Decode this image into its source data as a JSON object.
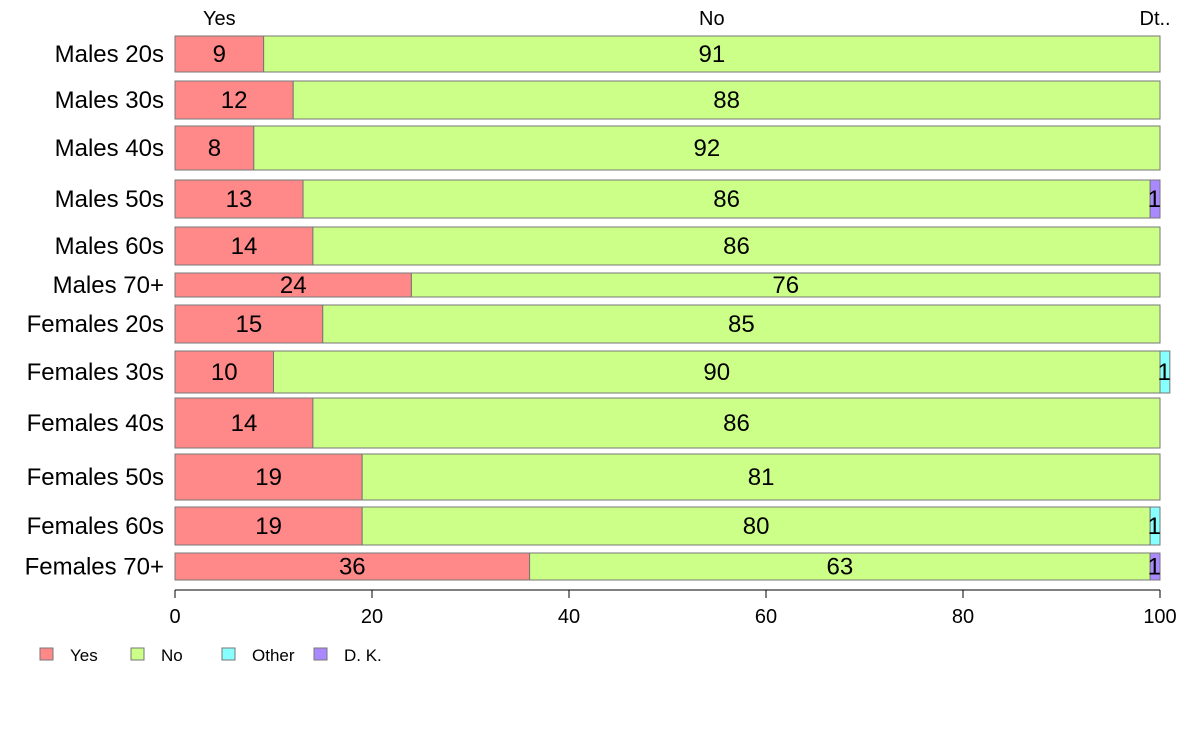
{
  "chart_data": {
    "type": "bar",
    "orientation": "horizontal",
    "stacked": true,
    "categories": [
      "Males 20s",
      "Males 30s",
      "Males 40s",
      "Males 50s",
      "Males 60s",
      "Males 70+",
      "Females 20s",
      "Females 30s",
      "Females 40s",
      "Females 50s",
      "Females 60s",
      "Females 70+"
    ],
    "series": [
      {
        "name": "Yes",
        "color": "#ff8888",
        "values": [
          9,
          12,
          8,
          13,
          14,
          24,
          15,
          10,
          14,
          19,
          19,
          36
        ],
        "labels": [
          "9",
          "12",
          "8",
          "13",
          "14",
          "24",
          "15",
          "10",
          "14",
          "19",
          "19",
          "36"
        ]
      },
      {
        "name": "No",
        "color": "#ccff88",
        "values": [
          91,
          88,
          92,
          86,
          86,
          76,
          85,
          90,
          86,
          81,
          80,
          63
        ],
        "labels": [
          "91",
          "88",
          "92",
          "86",
          "86",
          "76",
          "85",
          "90",
          "86",
          "81",
          "80",
          "63"
        ]
      },
      {
        "name": "Other",
        "color": "#88ffff",
        "values": [
          0,
          0,
          0,
          0,
          0,
          0,
          0,
          1,
          0,
          0,
          1,
          0
        ],
        "labels": [
          "",
          "",
          "",
          "",
          "",
          "",
          "",
          "1",
          "",
          "",
          "1",
          ""
        ]
      },
      {
        "name": "D. K.",
        "color": "#aa88ff",
        "values": [
          0,
          0,
          0,
          1,
          0,
          0,
          0,
          0,
          0,
          0,
          0,
          1
        ],
        "labels": [
          "",
          "",
          "",
          "1",
          "",
          "",
          "",
          "",
          "",
          "",
          "",
          "1"
        ]
      }
    ],
    "top_labels": [
      {
        "text": "Yes",
        "x": 4.5
      },
      {
        "text": "No",
        "x": 54.5
      },
      {
        "text": "Dt..",
        "x": 99.5
      }
    ],
    "xlim": [
      0,
      100
    ],
    "xticks": [
      0,
      20,
      40,
      60,
      80,
      100
    ],
    "legend_position": "bottom-left",
    "title": "",
    "xlabel": "",
    "ylabel": ""
  }
}
